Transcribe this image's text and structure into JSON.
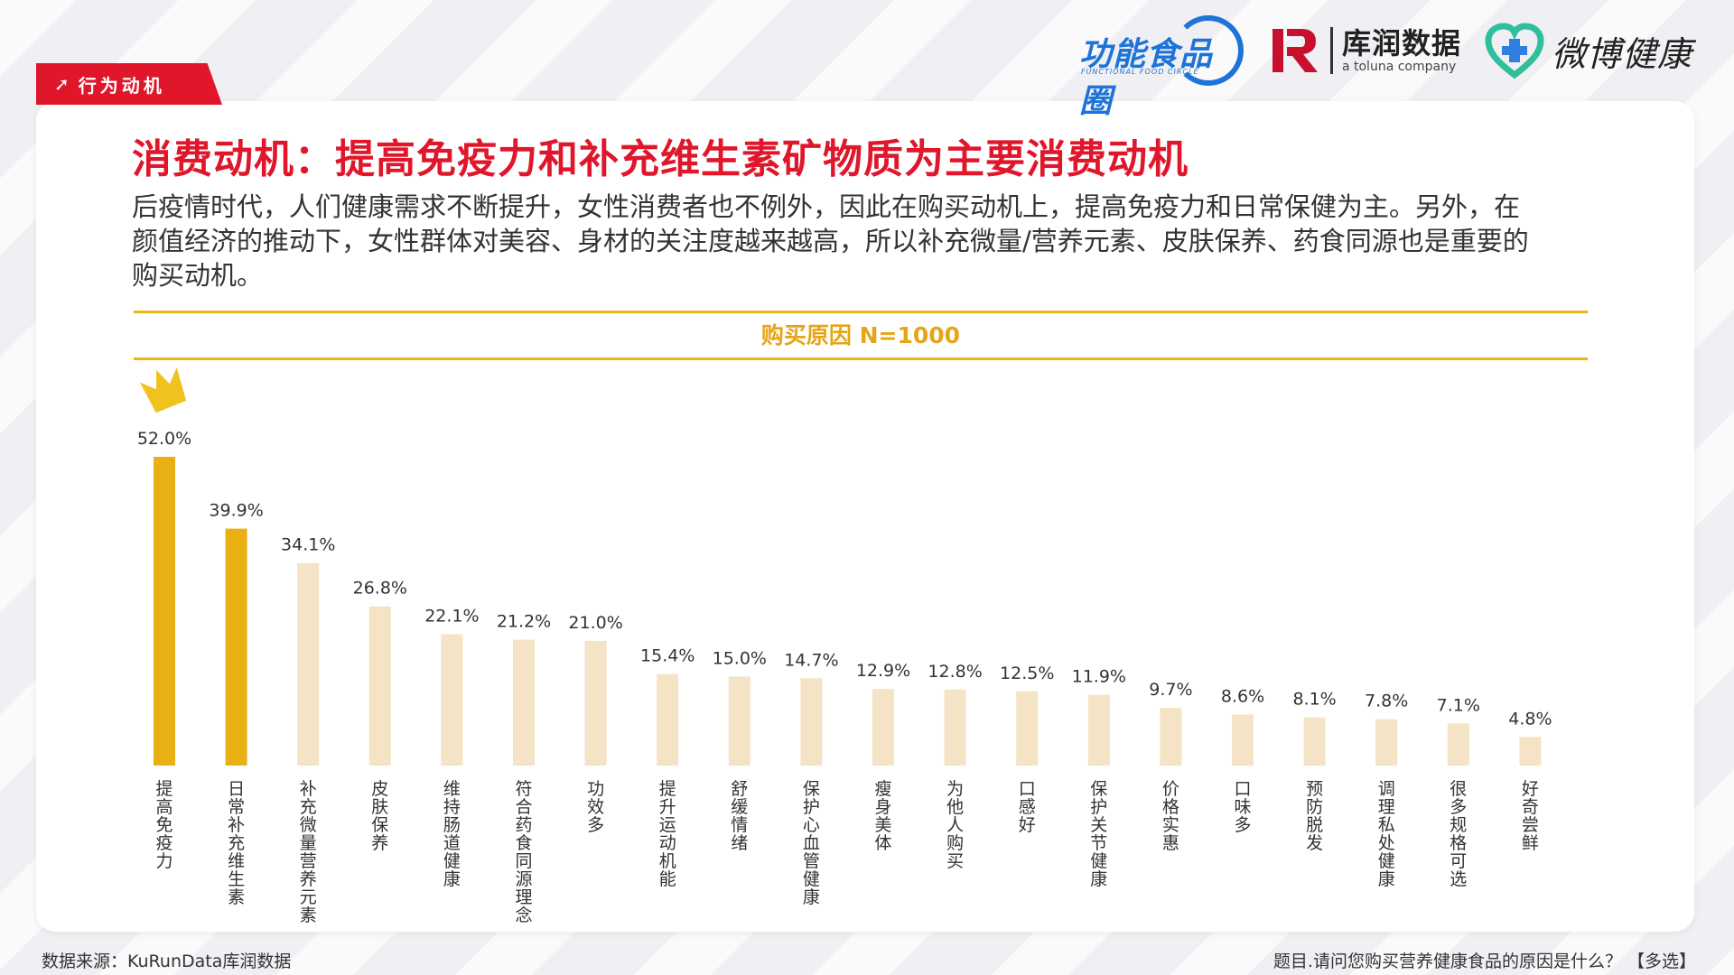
{
  "header": {
    "section_tag": "行为动机",
    "section_tag_icon": "arrow-up-right-icon",
    "logos": {
      "functional_food": {
        "name": "功能食品圈",
        "sub": "FUNCTIONAL FOOD CIRCLE"
      },
      "kurun": {
        "name": "库润数据",
        "sub": "a toluna company"
      },
      "weibo_health": {
        "name": "微博健康"
      }
    }
  },
  "title": "消费动机：提高免疫力和补充维生素矿物质为主要消费动机",
  "description": "后疫情时代，人们健康需求不断提升，女性消费者也不例外，因此在购买动机上，提高免疫力和日常保健为主。另外，在颜值经济的推动下，女性群体对美容、身材的关注度越来越高，所以补充微量/营养元素、皮肤保养、药食同源也是重要的购买动机。",
  "footer": {
    "source": "数据来源：KuRunData库润数据",
    "question": "题目.请问您购买营养健康食品的原因是什么？ 【多选】"
  },
  "colors": {
    "brand_red": "#e0162b",
    "highlight_bar": "#e8b013",
    "normal_bar": "#f4e3c4",
    "chart_title": "#e6a514"
  },
  "chart_data": {
    "type": "bar",
    "title": "购买原因 N=1000",
    "categories": [
      "提高免疫力",
      "日常补充维生素",
      "补充微量营养元素",
      "皮肤保养",
      "维持肠道健康",
      "符合药食同源理念",
      "功效多",
      "提升运动机能",
      "舒缓情绪",
      "保护心血管健康",
      "瘦身美体",
      "为他人购买",
      "口感好",
      "保护关节健康",
      "价格实惠",
      "口味多",
      "预防脱发",
      "调理私处健康",
      "很多规格可选",
      "好奇尝鲜"
    ],
    "values": [
      52.0,
      39.9,
      34.1,
      26.8,
      22.1,
      21.2,
      21.0,
      15.4,
      15.0,
      14.7,
      12.9,
      12.8,
      12.5,
      11.9,
      9.7,
      8.6,
      8.1,
      7.8,
      7.1,
      4.8
    ],
    "value_labels": [
      "52.0%",
      "39.9%",
      "34.1%",
      "26.8%",
      "22.1%",
      "21.2%",
      "21.0%",
      "15.4%",
      "15.0%",
      "14.7%",
      "12.9%",
      "12.8%",
      "12.5%",
      "11.9%",
      "9.7%",
      "8.6%",
      "8.1%",
      "7.8%",
      "7.1%",
      "4.8%"
    ],
    "highlighted": [
      0,
      1
    ],
    "top_marker_icon": "crown-icon",
    "ylim": [
      0,
      52.0
    ],
    "grid": false,
    "xlabel": "",
    "ylabel": ""
  }
}
